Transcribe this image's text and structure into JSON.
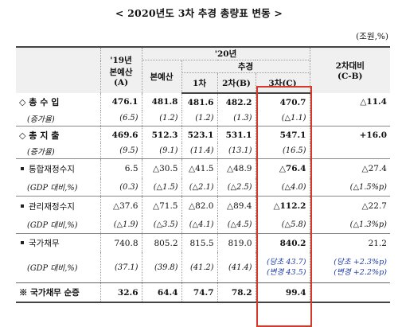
{
  "title": "< 2020년도 3차 추경 총량표 변동 >",
  "unit": "(조원,%)",
  "headers": {
    "col_a_line1": "'19년",
    "col_a_line2": "본예산",
    "col_a_line3": "(A)",
    "year20": "'20년",
    "budget": "본예산",
    "supp": "추경",
    "first": "1차",
    "second": "2차(B)",
    "third": "3차(C)",
    "diff_line1": "2차대비",
    "diff_line2": "(C-B)"
  },
  "rows": {
    "revenue": {
      "label": "◇ 총 수 입",
      "values": [
        "476.1",
        "481.8",
        "481.6",
        "482.2",
        "470.7",
        "△11.4"
      ]
    },
    "revenue_growth": {
      "label": "(증가율)",
      "values": [
        "(6.5)",
        "(1.2)",
        "(1.2)",
        "(1.3)",
        "(△1.1)",
        ""
      ]
    },
    "expenditure": {
      "label": "◇ 총 지 출",
      "values": [
        "469.6",
        "512.3",
        "523.1",
        "531.1",
        "547.1",
        "+16.0"
      ]
    },
    "expenditure_growth": {
      "label": "(증가율)",
      "values": [
        "(9.5)",
        "(9.1)",
        "(11.4)",
        "(13.1)",
        "(16.5)",
        ""
      ]
    },
    "consolidated": {
      "label": "통합재정수지",
      "values": [
        "6.5",
        "△30.5",
        "△41.5",
        "△48.9",
        "△76.4",
        "△27.4"
      ]
    },
    "consolidated_gdp": {
      "label": "(GDP 대비,%)",
      "values": [
        "(0.3)",
        "(△1.5)",
        "(△2.1)",
        "(△2.5)",
        "(△4.0)",
        "(△1.5%p)"
      ]
    },
    "managed": {
      "label": "관리재정수지",
      "values": [
        "△37.6",
        "△71.5",
        "△82.0",
        "△89.4",
        "△112.2",
        "△22.7"
      ]
    },
    "managed_gdp": {
      "label": "(GDP 대비,%)",
      "values": [
        "(△1.9)",
        "(△3.5)",
        "(△4.1)",
        "(△4.5)",
        "(△5.8)",
        "(△1.3%p)"
      ]
    },
    "debt": {
      "label": "국가채무",
      "values": [
        "740.8",
        "805.2",
        "815.5",
        "819.0",
        "840.2",
        "21.2"
      ]
    },
    "debt_gdp": {
      "label": "(GDP 대비,%)",
      "values": [
        "(37.1)",
        "(39.8)",
        "(41.2)",
        "(41.4)",
        "",
        ""
      ]
    },
    "debt_gdp_c1": "(당초 43.7)",
    "debt_gdp_c2": "(변경 43.5)",
    "debt_gdp_d1": "(당초 +2.3%p)",
    "debt_gdp_d2": "(변경 +2.2%p)",
    "debt_net": {
      "label": "※ 국가채무 순증",
      "values": [
        "32.6",
        "64.4",
        "74.7",
        "78.2",
        "99.4",
        ""
      ]
    }
  },
  "colors": {
    "highlight_border": "#d43a2a",
    "note_text": "#1f3aa6",
    "header_bg": "#f0f0f0"
  }
}
